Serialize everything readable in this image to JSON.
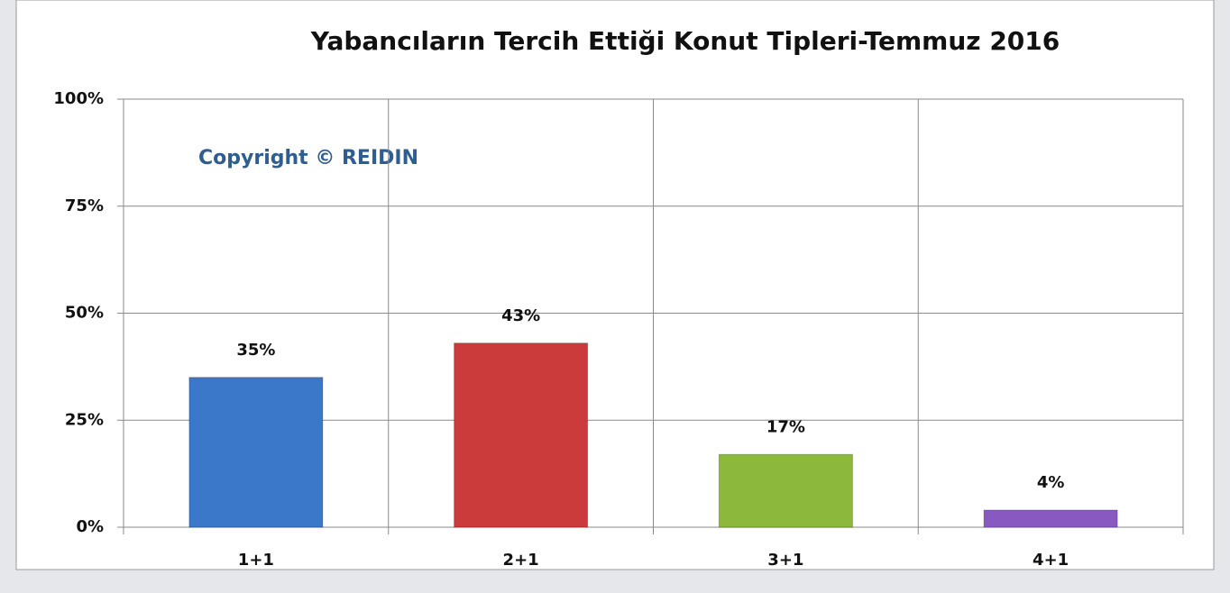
{
  "chart_data": {
    "type": "bar",
    "title": "Yabancıların Tercih Ettiği Konut Tipleri-Temmuz 2016",
    "annotation": "Copyright © REIDIN",
    "categories": [
      "1+1",
      "2+1",
      "3+1",
      "4+1"
    ],
    "values": [
      35,
      43,
      17,
      4
    ],
    "value_labels": [
      "35%",
      "43%",
      "17%",
      "4%"
    ],
    "colors": [
      "#3b78c9",
      "#cc3b3b",
      "#8cb83c",
      "#8859c0"
    ],
    "ylim": [
      0,
      100
    ],
    "yticks": [
      {
        "value": 0,
        "label": "0%"
      },
      {
        "value": 25,
        "label": "25%"
      },
      {
        "value": 50,
        "label": "50%"
      },
      {
        "value": 75,
        "label": "75%"
      },
      {
        "value": 100,
        "label": "100%"
      }
    ],
    "grid": true
  }
}
